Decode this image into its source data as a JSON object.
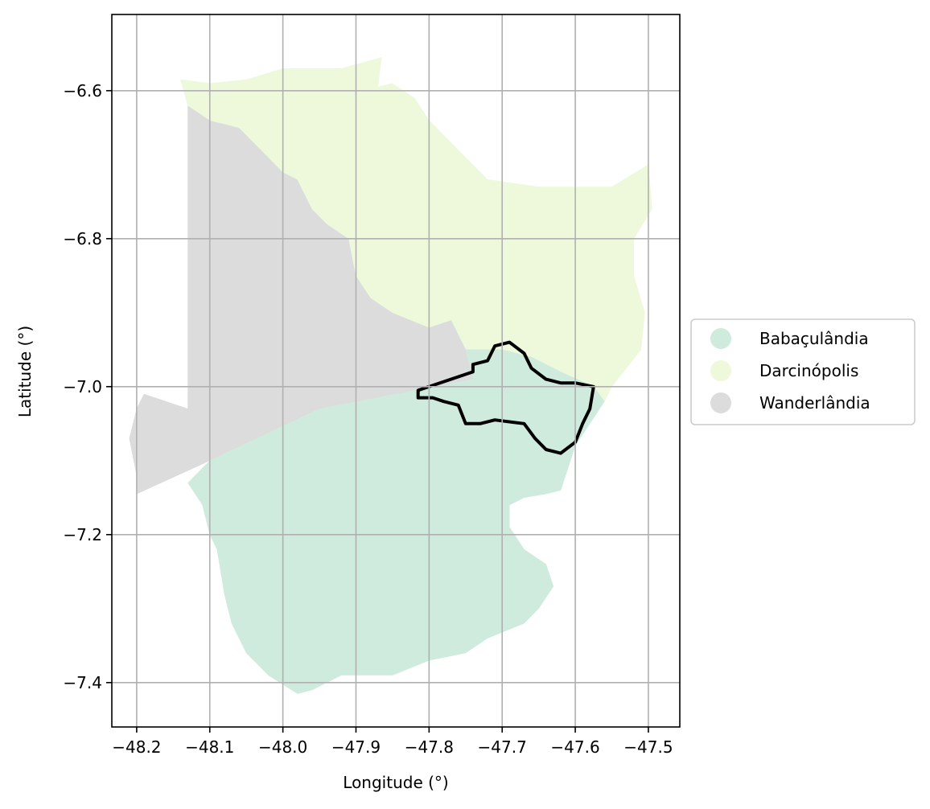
{
  "map": {
    "xlabel": "Longitude (°)",
    "ylabel": "Latitude (°)",
    "x_ticks": [
      -48.2,
      -48.1,
      -48.0,
      -47.9,
      -47.8,
      -47.7,
      -47.6,
      -47.5
    ],
    "x_tick_labels": [
      "−48.2",
      "−48.1",
      "−48.0",
      "−47.9",
      "−47.8",
      "−47.7",
      "−47.6",
      "−47.5"
    ],
    "y_ticks": [
      -6.6,
      -6.8,
      -7.0,
      -7.2,
      -7.4
    ],
    "y_tick_labels": [
      "−6.6",
      "−6.8",
      "−7.0",
      "−7.2",
      "−7.4"
    ],
    "xlim": [
      -48.234,
      -47.457
    ],
    "ylim": [
      -7.46,
      -6.497
    ],
    "grid": true,
    "legend_placement": "right",
    "legend": [
      {
        "label": "Babaçulândia",
        "color": "#cfebdd"
      },
      {
        "label": "Darcinópolis",
        "color": "#eef9dc"
      },
      {
        "label": "Wanderlândia",
        "color": "#dcdcdc"
      }
    ],
    "regions": [
      {
        "name": "Wanderlândia",
        "color": "#dcdcdc",
        "coords": [
          [
            -48.13,
            -6.62
          ],
          [
            -48.1,
            -6.64
          ],
          [
            -48.06,
            -6.65
          ],
          [
            -48.03,
            -6.68
          ],
          [
            -48.0,
            -6.71
          ],
          [
            -47.98,
            -6.72
          ],
          [
            -47.96,
            -6.76
          ],
          [
            -47.94,
            -6.78
          ],
          [
            -47.91,
            -6.8
          ],
          [
            -47.9,
            -6.85
          ],
          [
            -47.88,
            -6.88
          ],
          [
            -47.85,
            -6.9
          ],
          [
            -47.8,
            -6.92
          ],
          [
            -47.77,
            -6.91
          ],
          [
            -47.75,
            -6.95
          ],
          [
            -47.74,
            -6.99
          ],
          [
            -47.95,
            -7.03
          ],
          [
            -48.1,
            -7.1
          ],
          [
            -48.2,
            -7.145
          ],
          [
            -48.2,
            -7.12
          ],
          [
            -48.21,
            -7.07
          ],
          [
            -48.2,
            -7.03
          ],
          [
            -48.19,
            -7.01
          ],
          [
            -48.16,
            -7.02
          ],
          [
            -48.13,
            -7.03
          ]
        ]
      },
      {
        "name": "Darcinópolis",
        "color": "#eef9dc",
        "coords": [
          [
            -48.14,
            -6.585
          ],
          [
            -48.1,
            -6.59
          ],
          [
            -48.05,
            -6.585
          ],
          [
            -48.0,
            -6.57
          ],
          [
            -47.96,
            -6.57
          ],
          [
            -47.92,
            -6.57
          ],
          [
            -47.865,
            -6.555
          ],
          [
            -47.87,
            -6.595
          ],
          [
            -47.85,
            -6.59
          ],
          [
            -47.82,
            -6.61
          ],
          [
            -47.8,
            -6.64
          ],
          [
            -47.77,
            -6.67
          ],
          [
            -47.72,
            -6.72
          ],
          [
            -47.65,
            -6.73
          ],
          [
            -47.6,
            -6.73
          ],
          [
            -47.55,
            -6.73
          ],
          [
            -47.5,
            -6.7
          ],
          [
            -47.495,
            -6.76
          ],
          [
            -47.52,
            -6.8
          ],
          [
            -47.52,
            -6.85
          ],
          [
            -47.505,
            -6.9
          ],
          [
            -47.51,
            -6.95
          ],
          [
            -47.55,
            -7.0
          ],
          [
            -47.56,
            -7.02
          ],
          [
            -47.575,
            -7.0
          ],
          [
            -47.62,
            -6.98
          ],
          [
            -47.66,
            -6.96
          ],
          [
            -47.7,
            -6.95
          ],
          [
            -47.75,
            -6.95
          ],
          [
            -47.77,
            -6.91
          ],
          [
            -47.8,
            -6.92
          ],
          [
            -47.85,
            -6.9
          ],
          [
            -47.88,
            -6.88
          ],
          [
            -47.9,
            -6.85
          ],
          [
            -47.91,
            -6.8
          ],
          [
            -47.94,
            -6.78
          ],
          [
            -47.96,
            -6.76
          ],
          [
            -47.98,
            -6.72
          ],
          [
            -48.0,
            -6.71
          ],
          [
            -48.03,
            -6.68
          ],
          [
            -48.06,
            -6.65
          ],
          [
            -48.1,
            -6.64
          ],
          [
            -48.13,
            -6.62
          ]
        ]
      },
      {
        "name": "Babaçulândia",
        "color": "#cfebdd",
        "coords": [
          [
            -47.77,
            -6.91
          ],
          [
            -47.75,
            -6.95
          ],
          [
            -47.7,
            -6.95
          ],
          [
            -47.66,
            -6.96
          ],
          [
            -47.62,
            -6.98
          ],
          [
            -47.575,
            -7.0
          ],
          [
            -47.56,
            -7.02
          ],
          [
            -47.58,
            -7.05
          ],
          [
            -47.6,
            -7.08
          ],
          [
            -47.61,
            -7.11
          ],
          [
            -47.62,
            -7.14
          ],
          [
            -47.64,
            -7.145
          ],
          [
            -47.67,
            -7.15
          ],
          [
            -47.69,
            -7.16
          ],
          [
            -47.69,
            -7.19
          ],
          [
            -47.67,
            -7.22
          ],
          [
            -47.64,
            -7.24
          ],
          [
            -47.63,
            -7.27
          ],
          [
            -47.65,
            -7.3
          ],
          [
            -47.67,
            -7.32
          ],
          [
            -47.72,
            -7.34
          ],
          [
            -47.75,
            -7.36
          ],
          [
            -47.8,
            -7.37
          ],
          [
            -47.85,
            -7.39
          ],
          [
            -47.92,
            -7.39
          ],
          [
            -47.96,
            -7.41
          ],
          [
            -47.98,
            -7.415
          ],
          [
            -48.02,
            -7.39
          ],
          [
            -48.05,
            -7.36
          ],
          [
            -48.07,
            -7.32
          ],
          [
            -48.08,
            -7.28
          ],
          [
            -48.09,
            -7.22
          ],
          [
            -48.1,
            -7.2
          ],
          [
            -48.11,
            -7.16
          ],
          [
            -48.13,
            -7.13
          ],
          [
            -48.1,
            -7.1
          ],
          [
            -47.95,
            -7.03
          ],
          [
            -47.74,
            -6.99
          ],
          [
            -47.75,
            -6.95
          ]
        ]
      }
    ],
    "highlight_outline": {
      "coords": [
        [
          -47.815,
          -7.005
        ],
        [
          -47.74,
          -6.98
        ],
        [
          -47.74,
          -6.97
        ],
        [
          -47.72,
          -6.965
        ],
        [
          -47.71,
          -6.945
        ],
        [
          -47.69,
          -6.94
        ],
        [
          -47.67,
          -6.955
        ],
        [
          -47.66,
          -6.975
        ],
        [
          -47.64,
          -6.99
        ],
        [
          -47.62,
          -6.995
        ],
        [
          -47.6,
          -6.995
        ],
        [
          -47.575,
          -7.0
        ],
        [
          -47.58,
          -7.03
        ],
        [
          -47.59,
          -7.05
        ],
        [
          -47.6,
          -7.075
        ],
        [
          -47.62,
          -7.09
        ],
        [
          -47.64,
          -7.085
        ],
        [
          -47.655,
          -7.07
        ],
        [
          -47.67,
          -7.05
        ],
        [
          -47.71,
          -7.045
        ],
        [
          -47.73,
          -7.05
        ],
        [
          -47.75,
          -7.05
        ],
        [
          -47.76,
          -7.025
        ],
        [
          -47.78,
          -7.02
        ],
        [
          -47.795,
          -7.015
        ],
        [
          -47.815,
          -7.015
        ]
      ]
    }
  }
}
